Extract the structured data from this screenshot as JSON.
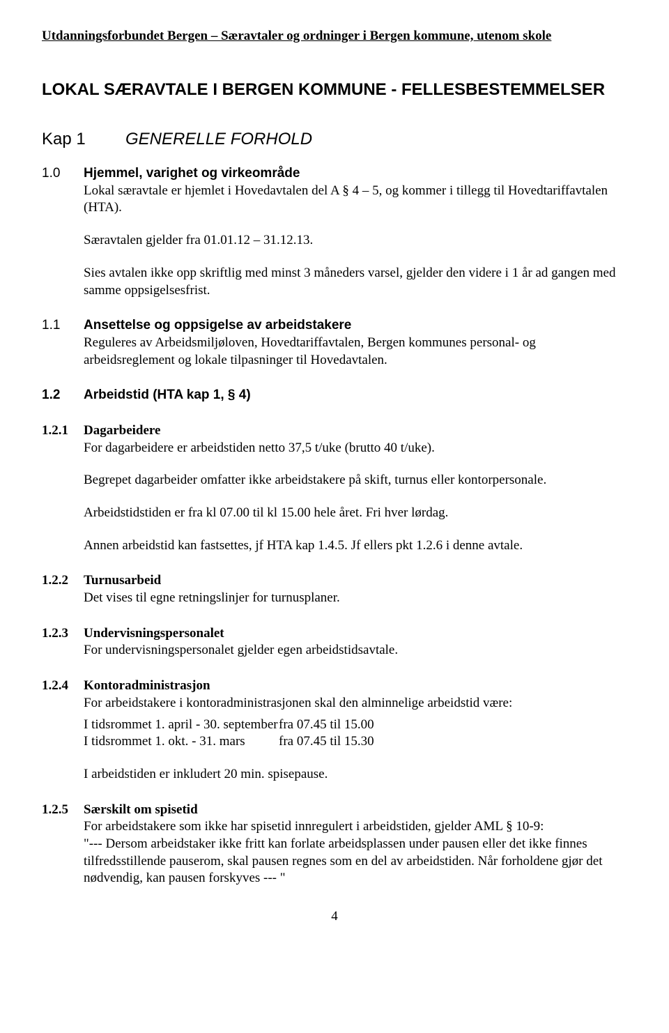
{
  "header": "Utdanningsforbundet Bergen – Særavtaler og ordninger i Bergen kommune, utenom skole",
  "main_title": "LOKAL SÆRAVTALE I BERGEN KOMMUNE - FELLESBESTEMMELSER",
  "kap": {
    "label": "Kap 1",
    "title": "GENERELLE FORHOLD"
  },
  "s1_0": {
    "num": "1.0",
    "title": "Hjemmel, varighet og virkeområde",
    "p1": "Lokal særavtale er hjemlet i Hovedavtalen del A § 4 – 5, og kommer i tillegg til Hovedtariffavtalen (HTA).",
    "p2": "Særavtalen gjelder fra 01.01.12 – 31.12.13.",
    "p3": "Sies avtalen ikke opp skriftlig med minst 3 måneders varsel, gjelder den videre i 1 år ad gangen med samme oppsigelsesfrist."
  },
  "s1_1": {
    "num": "1.1",
    "title": "Ansettelse og oppsigelse av arbeidstakere",
    "p1": "Reguleres av Arbeidsmiljøloven, Hovedtariffavtalen, Bergen kommunes personal- og arbeidsreglement og lokale tilpasninger til Hovedavtalen."
  },
  "s1_2": {
    "num": "1.2",
    "title": "Arbeidstid (HTA kap 1, § 4)"
  },
  "s1_2_1": {
    "num": "1.2.1",
    "title": "Dagarbeidere",
    "p1": "For dagarbeidere er arbeidstiden netto 37,5 t/uke (brutto 40 t/uke).",
    "p2": "Begrepet dagarbeider omfatter ikke arbeidstakere på skift, turnus eller kontorpersonale.",
    "p3": "Arbeidstidstiden er fra kl 07.00 til kl 15.00 hele året. Fri hver lørdag.",
    "p4": "Annen arbeidstid kan fastsettes, jf HTA kap 1.4.5. Jf ellers pkt 1.2.6 i denne avtale."
  },
  "s1_2_2": {
    "num": "1.2.2",
    "title": "Turnusarbeid",
    "p1": "Det vises til egne retningslinjer for turnusplaner."
  },
  "s1_2_3": {
    "num": "1.2.3",
    "title": "Undervisningspersonalet",
    "p1": "For undervisningspersonalet gjelder egen arbeidstidsavtale."
  },
  "s1_2_4": {
    "num": "1.2.4",
    "title": "Kontoradministrasjon",
    "p1": "For arbeidstakere i kontoradministrasjonen skal den alminnelige arbeidstid være:",
    "row1a": "I tidsrommet 1. april - 30. september",
    "row1b": "fra 07.45 til 15.00",
    "row2a": "I tidsrommet 1. okt.  - 31. mars",
    "row2b": "fra 07.45 til 15.30",
    "p3": "I arbeidstiden er inkludert 20 min. spisepause."
  },
  "s1_2_5": {
    "num": "1.2.5",
    "title": "Særskilt om spisetid",
    "p1": "For arbeidstakere som ikke har spisetid innregulert i arbeidstiden, gjelder AML § 10-9:",
    "p2": "\"--- Dersom arbeidstaker ikke fritt kan forlate arbeidsplassen under pausen eller det ikke finnes tilfredsstillende pauserom, skal pausen regnes som en del av arbeidstiden. Når forholdene gjør det nødvendig, kan pausen forskyves --- \""
  },
  "page_number": "4"
}
